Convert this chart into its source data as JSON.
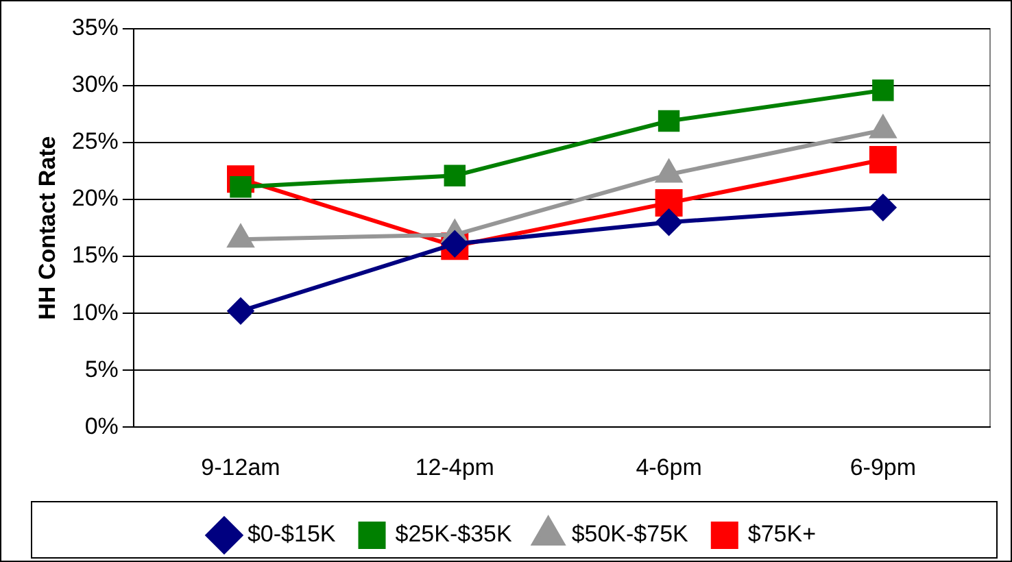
{
  "chart_data": {
    "type": "line",
    "ylabel": "HH Contact Rate",
    "categories": [
      "9-12am",
      "12-4pm",
      "4-6pm",
      "6-9pm"
    ],
    "series": [
      {
        "name": "$0-$15K",
        "color": "#000080",
        "marker": "diamond",
        "values": [
          10.2,
          16.1,
          18.0,
          19.3
        ]
      },
      {
        "name": "$25K-$35K",
        "color": "#008000",
        "marker": "square",
        "values": [
          21.1,
          22.1,
          26.9,
          29.6
        ]
      },
      {
        "name": "$50K-$75K",
        "color": "#969696",
        "marker": "triangle",
        "values": [
          16.5,
          16.9,
          22.2,
          26.1
        ]
      },
      {
        "name": "$75K+",
        "color": "#ff0000",
        "marker": "square",
        "values": [
          21.8,
          15.9,
          19.7,
          23.5
        ]
      }
    ],
    "ylim": [
      0,
      35
    ],
    "yticks": [
      {
        "value": 0,
        "label": "0%"
      },
      {
        "value": 5,
        "label": "5%"
      },
      {
        "value": 10,
        "label": "10%"
      },
      {
        "value": 15,
        "label": "15%"
      },
      {
        "value": 20,
        "label": "20%"
      },
      {
        "value": 25,
        "label": "25%"
      },
      {
        "value": 30,
        "label": "30%"
      },
      {
        "value": 35,
        "label": "35%"
      }
    ],
    "grid": "y",
    "legend": "bottom",
    "line_style": "solid"
  }
}
